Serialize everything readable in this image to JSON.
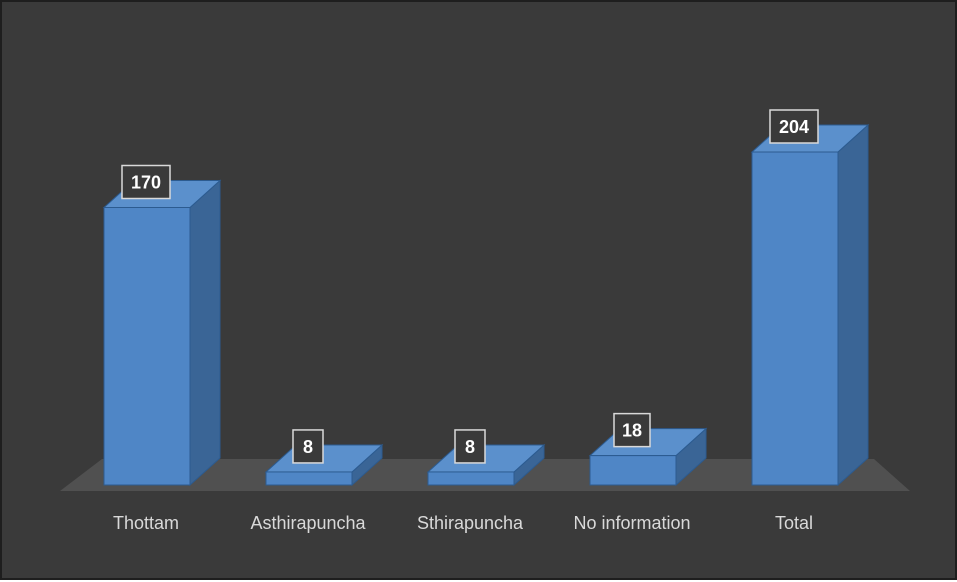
{
  "chart_data": {
    "type": "bar",
    "style": "3d-column",
    "categories": [
      "Thottam",
      "Asthirapuncha",
      "Sthirapuncha",
      "No information",
      "Total"
    ],
    "values": [
      170,
      8,
      8,
      18,
      204
    ],
    "data_labels": [
      "170",
      "8",
      "8",
      "18",
      "204"
    ],
    "title": "",
    "xlabel": "",
    "ylabel": "",
    "ylim": [
      0,
      204
    ],
    "grid": false,
    "legend": "none",
    "colors": {
      "background": "#3a3a3a",
      "bar_front": "#4f86c6",
      "bar_side": "#3a6596",
      "bar_top": "#5b90cc",
      "bar_edge": "#2c5b90",
      "floor": "#505050",
      "label_box": "#3a3a3a",
      "label_border": "#d9d9d9",
      "axis_text": "#d9d9d9"
    }
  }
}
